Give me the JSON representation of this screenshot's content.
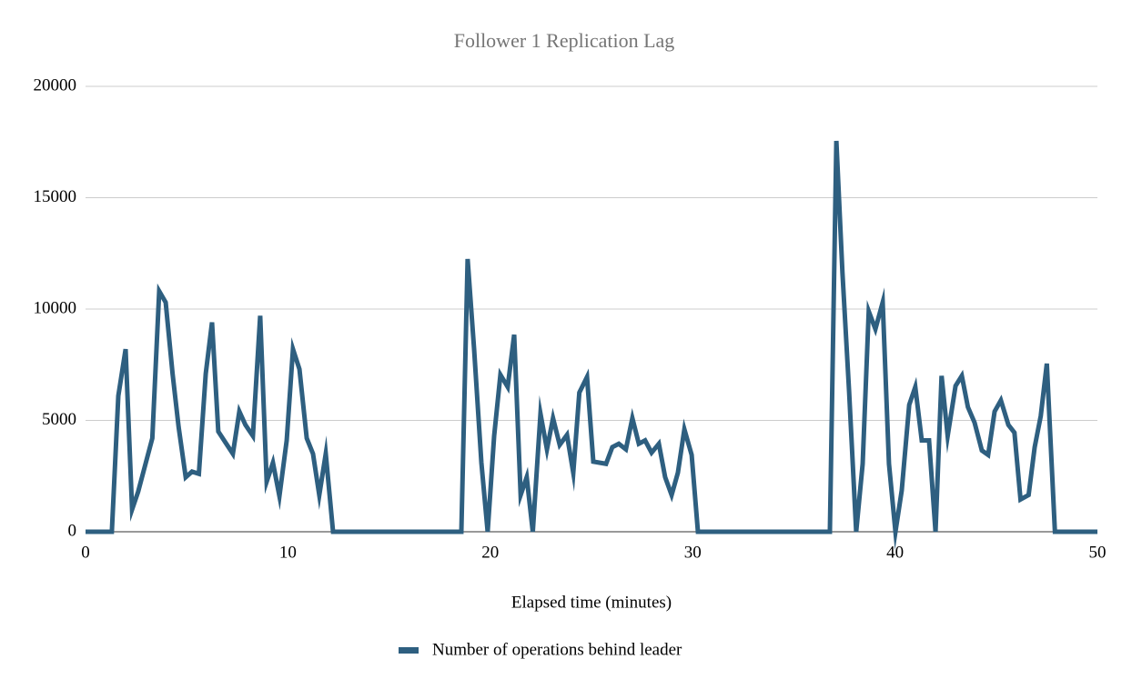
{
  "chart_data": {
    "type": "line",
    "title": "Follower 1 Replication Lag",
    "x_label": "Elapsed time (minutes)",
    "x": [
      0,
      1.3,
      1.62,
      1.98,
      2.3,
      2.6,
      3.3,
      3.64,
      3.96,
      4.3,
      4.6,
      4.95,
      5.26,
      5.6,
      5.94,
      6.25,
      6.56,
      6.92,
      7.28,
      7.6,
      7.9,
      8.27,
      8.63,
      8.95,
      9.26,
      9.58,
      9.94,
      10.25,
      10.57,
      10.93,
      11.24,
      11.55,
      11.87,
      12.23,
      18.57,
      18.88,
      19.2,
      19.56,
      19.87,
      20.19,
      20.5,
      20.86,
      21.18,
      21.5,
      21.8,
      22.1,
      22.48,
      22.8,
      23.1,
      23.43,
      23.79,
      24.1,
      24.4,
      24.78,
      25.09,
      25.72,
      26.03,
      26.35,
      26.7,
      27.02,
      27.34,
      27.65,
      27.97,
      28.33,
      28.64,
      28.96,
      29.27,
      29.59,
      29.95,
      30.26,
      36.78,
      37.1,
      37.4,
      37.73,
      38.08,
      38.4,
      38.7,
      39.03,
      39.39,
      39.7,
      40.02,
      40.33,
      40.7,
      41.0,
      41.32,
      41.68,
      42.0,
      42.3,
      42.6,
      42.99,
      43.3,
      43.6,
      43.93,
      44.29,
      44.6,
      44.92,
      45.23,
      45.6,
      45.9,
      46.2,
      46.6,
      46.9,
      47.2,
      47.5,
      47.9,
      50
    ],
    "series": [
      {
        "name": "Number of operations behind leader",
        "color": "#2e5f80",
        "values": [
          0,
          0,
          6100,
          8200,
          1000,
          1800,
          4200,
          10800,
          10300,
          7100,
          4700,
          2450,
          2700,
          2600,
          7100,
          9400,
          4500,
          4000,
          3500,
          5400,
          4800,
          4300,
          9700,
          2250,
          3100,
          1600,
          4100,
          8200,
          7300,
          4200,
          3500,
          1650,
          3500,
          0,
          0,
          12250,
          8200,
          3100,
          0,
          4300,
          7050,
          6500,
          8850,
          1650,
          2450,
          0,
          5300,
          3700,
          5100,
          3900,
          4350,
          2650,
          6250,
          6950,
          3150,
          3050,
          3800,
          3950,
          3700,
          5100,
          3950,
          4100,
          3550,
          3950,
          2450,
          1650,
          2650,
          4600,
          3450,
          0,
          0,
          17550,
          11650,
          6300,
          0,
          3050,
          9900,
          9100,
          10300,
          3050,
          0,
          1850,
          5700,
          6500,
          4100,
          4100,
          0,
          7000,
          4300,
          6550,
          7000,
          5600,
          4900,
          3650,
          3450,
          5400,
          5900,
          4800,
          4450,
          1450,
          1650,
          3800,
          5200,
          7550,
          0,
          0
        ]
      }
    ],
    "xlim": [
      0,
      50
    ],
    "xticks": [
      0,
      10,
      20,
      30,
      40,
      50
    ],
    "ylim": [
      0,
      20000
    ],
    "yticks": [
      0,
      5000,
      10000,
      15000,
      20000
    ],
    "grid": true,
    "legend_position": "bottom"
  }
}
